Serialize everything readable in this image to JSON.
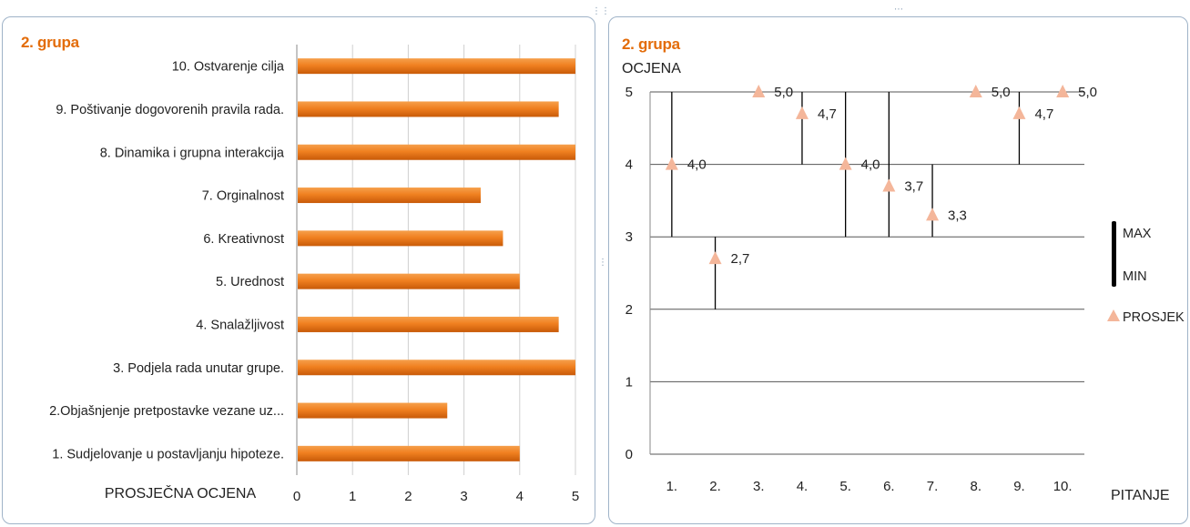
{
  "chart_data": [
    {
      "type": "bar",
      "orientation": "horizontal",
      "title": "2. grupa",
      "xlabel": "PROSJEČNA OCJENA",
      "xlim": [
        0,
        5
      ],
      "x_ticks": [
        "0",
        "1",
        "2",
        "3",
        "4",
        "5"
      ],
      "grid": true,
      "color": "#f07c12",
      "categories": [
        "10. Ostvarenje cilja",
        "9. Poštivanje  dogovorenih pravila rada.",
        "8. Dinamika  i grupna interakcija",
        "7. Orginalnost",
        "6. Kreativnost",
        "5. Urednost",
        "4. Snalažljivost",
        "3. Podjela rada unutar grupe.",
        "2.Objašnjenje pretpostavke  vezane uz...",
        "1. Sudjelovanje u postavljanju  hipoteze."
      ],
      "values": [
        5.0,
        4.7,
        5.0,
        3.3,
        3.7,
        4.0,
        4.7,
        5.0,
        2.7,
        4.0
      ]
    },
    {
      "type": "scatter",
      "subtype": "high-low with average markers",
      "title": "2. grupa",
      "ylabel": "OCJENA",
      "xlabel": "PITANJE",
      "ylim": [
        0,
        5
      ],
      "y_ticks": [
        "0",
        "1",
        "2",
        "3",
        "4",
        "5"
      ],
      "grid": true,
      "categories": [
        "1.",
        "2.",
        "3.",
        "4.",
        "5.",
        "6.",
        "7.",
        "8.",
        "9.",
        "10."
      ],
      "series": [
        {
          "name": "MAX",
          "values": [
            5,
            3,
            5,
            5,
            5,
            5,
            4,
            5,
            5,
            5
          ]
        },
        {
          "name": "MIN",
          "values": [
            3,
            2,
            5,
            4,
            3,
            3,
            3,
            5,
            4,
            5
          ]
        },
        {
          "name": "PROSJEK",
          "values": [
            4.0,
            2.7,
            5.0,
            4.7,
            4.0,
            3.7,
            3.3,
            5.0,
            4.7,
            5.0
          ]
        }
      ],
      "data_labels": [
        "4,0",
        "2,7",
        "5,0",
        "4,7",
        "4,0",
        "3,7",
        "3,3",
        "5,0",
        "4,7",
        "5,0"
      ],
      "legend": [
        "MAX",
        "MIN",
        "PROSJEK"
      ],
      "legend_position": "right",
      "marker_color": "#f4b69a",
      "line_color": "#000000"
    }
  ]
}
